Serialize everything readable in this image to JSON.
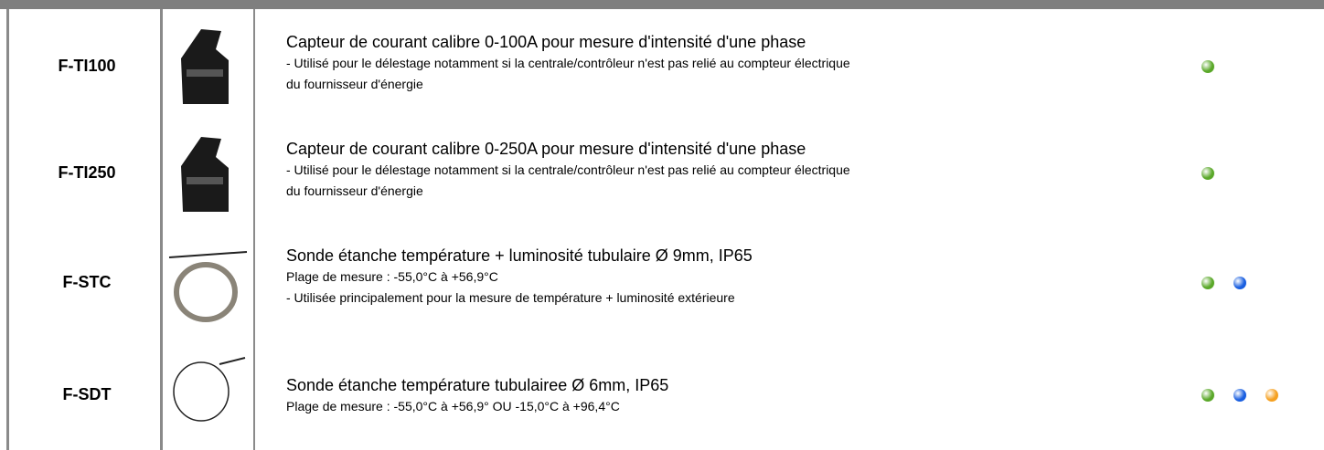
{
  "rows": [
    {
      "code": "F-TI100",
      "title": "Capteur de courant calibre 0-100A pour mesure d'intensité d'une phase",
      "lines": [
        "- Utilisé pour le délestage notamment si la centrale/contrôleur n'est pas relié au compteur électrique",
        "du fournisseur d'énergie"
      ],
      "dots": [
        "#5aa829"
      ]
    },
    {
      "code": "F-TI250",
      "title": "Capteur de courant calibre 0-250A pour mesure d'intensité d'une phase",
      "lines": [
        "- Utilisé pour le délestage notamment si la centrale/contrôleur n'est pas relié au compteur électrique",
        "du fournisseur d'énergie"
      ],
      "dots": [
        "#5aa829"
      ]
    },
    {
      "code": "F-STC",
      "title": "Sonde étanche température + luminosité tubulaire Ø 9mm, IP65",
      "lines": [
        "Plage de mesure : -55,0°C à +56,9°C",
        "- Utilisée principalement pour la mesure de température + luminosité extérieure"
      ],
      "dots": [
        "#5aa829",
        "#1a5fe0"
      ]
    },
    {
      "code": "F-SDT",
      "title": "Sonde  étanche température tubulairee Ø 6mm, IP65",
      "lines": [
        "Plage de mesure : -55,0°C à +56,9° OU -15,0°C à +96,4°C"
      ],
      "dots": [
        "#5aa829",
        "#1a5fe0",
        "#f5a020"
      ]
    }
  ]
}
